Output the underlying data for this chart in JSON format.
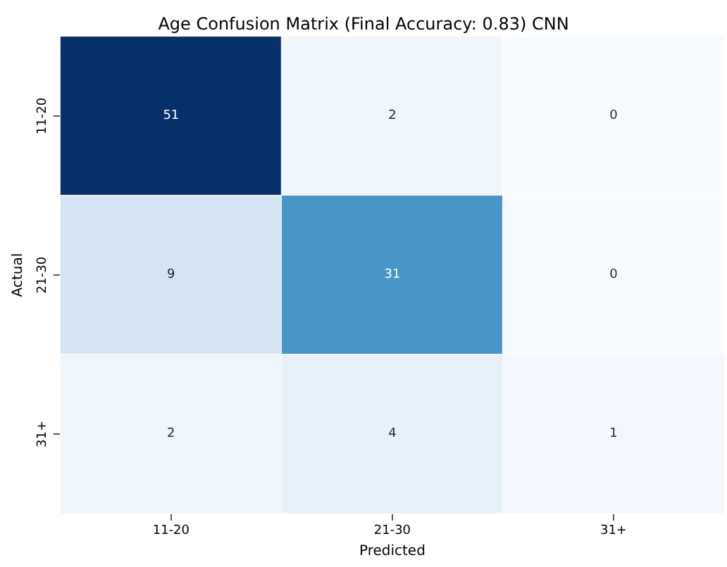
{
  "chart_data": {
    "type": "heatmap",
    "title": "Age Confusion Matrix (Final Accuracy: 0.83) CNN",
    "xlabel": "Predicted",
    "ylabel": "Actual",
    "categories": [
      "11-20",
      "21-30",
      "31+"
    ],
    "y_categories": [
      "11-20",
      "21-30",
      "31+"
    ],
    "cells": [
      [
        51,
        2,
        0
      ],
      [
        9,
        31,
        0
      ],
      [
        2,
        4,
        1
      ]
    ],
    "data_labels": true
  }
}
